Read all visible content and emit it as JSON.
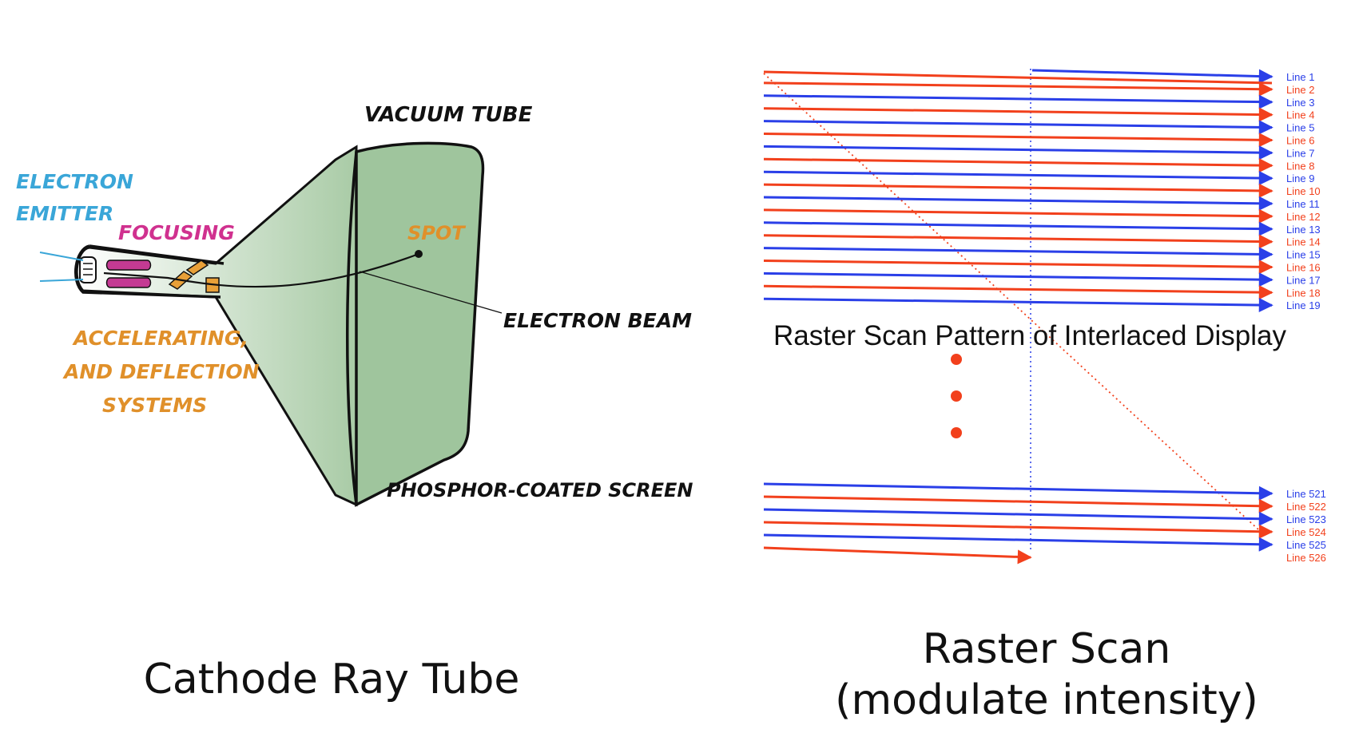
{
  "colors": {
    "blue_line": "#2a3fe8",
    "red_line": "#f2401c",
    "screen_green": "#9fc59d",
    "emitter_label": "#3aa6d8",
    "focusing_label": "#d0318f",
    "accel_label": "#e0902a",
    "spot_label": "#e0902a",
    "ink": "#111111"
  },
  "crt": {
    "labels": {
      "vacuum_tube": "VACUUM TUBE",
      "electron_emitter_1": "ELECTRON",
      "electron_emitter_2": "EMITTER",
      "focusing": "FOCUSING",
      "spot": "SPOT",
      "electron_beam": "ELECTRON BEAM",
      "accel_1": "ACCELERATING,",
      "accel_2": "AND DEFLECTION",
      "accel_3": "SYSTEMS",
      "phosphor": "PHOSPHOR-COATED SCREEN"
    },
    "caption": "Cathode Ray Tube"
  },
  "raster": {
    "title": "Raster Scan Pattern of Interlaced Display",
    "top_lines": [
      "Line 1",
      "Line 2",
      "Line 3",
      "Line 4",
      "Line 5",
      "Line 6",
      "Line 7",
      "Line 8",
      "Line 9",
      "Line 10",
      "Line 11",
      "Line 12",
      "Line 13",
      "Line 14",
      "Line 15",
      "Line 16",
      "Line 17",
      "Line 18",
      "Line 19"
    ],
    "bottom_lines": [
      "Line 521",
      "Line 522",
      "Line 523",
      "Line 524",
      "Line 525",
      "Line 526"
    ],
    "caption_1": "Raster Scan",
    "caption_2": "(modulate intensity)"
  }
}
